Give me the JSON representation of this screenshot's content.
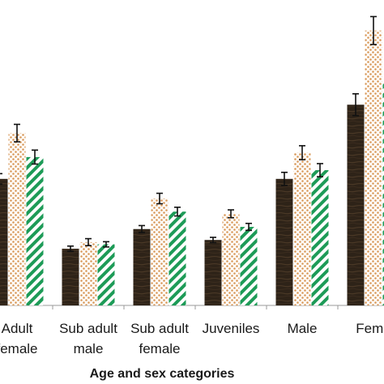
{
  "chart_data": {
    "type": "bar",
    "xlabel": "Age and sex categories",
    "ylabel": "",
    "categories": [
      [
        "Adult",
        "female"
      ],
      [
        "Sub adult",
        "male"
      ],
      [
        "Sub adult",
        "female"
      ],
      [
        "Juveniles"
      ],
      [
        "Male"
      ],
      [
        "Fema"
      ]
    ],
    "series": [
      {
        "pattern": "wood",
        "values": [
          29,
          13,
          17.5,
          15,
          29,
          46
        ],
        "errors": [
          1.2,
          0.6,
          0.8,
          0.6,
          1.5,
          2.5
        ]
      },
      {
        "pattern": "dots",
        "values": [
          39.5,
          14.5,
          24.5,
          21,
          35,
          63
        ],
        "errors": [
          2.0,
          0.8,
          1.2,
          0.9,
          1.6,
          3.2
        ]
      },
      {
        "pattern": "stripes",
        "values": [
          34,
          14,
          21.5,
          18,
          31,
          51
        ],
        "errors": [
          1.6,
          0.6,
          1.0,
          0.8,
          1.5,
          2.4
        ]
      }
    ],
    "ylim": [
      0,
      70
    ],
    "grid": false,
    "colors": {
      "wood_dark": "#2e2318",
      "wood_light": "#4a3826",
      "dot": "#d99a5b",
      "stripe": "#1d9b57",
      "axis": "#9a9a9a",
      "error": "#111111"
    }
  }
}
